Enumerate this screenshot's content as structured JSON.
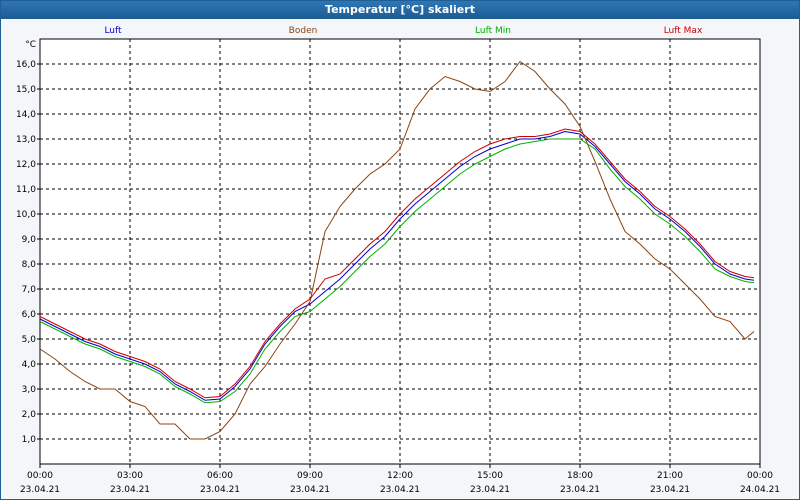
{
  "window": {
    "title": "Temperatur [°C] skaliert"
  },
  "colors": {
    "luft": "#0000cc",
    "boden": "#8b4513",
    "luft_min": "#00b000",
    "luft_max": "#cc0000",
    "grid": "#000000",
    "text": "#000000"
  },
  "chart_data": {
    "type": "line",
    "title": "Temperatur [°C] skaliert",
    "ylabel": "°C",
    "xlabel": "",
    "ylim": [
      0,
      17
    ],
    "xlim": [
      0,
      24
    ],
    "grid": true,
    "legend_position": "top",
    "y_ticks": [
      1.0,
      2.0,
      3.0,
      4.0,
      5.0,
      6.0,
      7.0,
      8.0,
      9.0,
      10.0,
      11.0,
      12.0,
      13.0,
      14.0,
      15.0,
      16.0
    ],
    "y_tick_labels": [
      "1,0",
      "2,0",
      "3,0",
      "4,0",
      "5,0",
      "6,0",
      "7,0",
      "8,0",
      "9,0",
      "10,0",
      "11,0",
      "12,0",
      "13,0",
      "14,0",
      "15,0",
      "16,0"
    ],
    "x_ticks": [
      0,
      3,
      6,
      9,
      12,
      15,
      18,
      21,
      24
    ],
    "x_tick_times": [
      "00:00",
      "03:00",
      "06:00",
      "09:00",
      "12:00",
      "15:00",
      "18:00",
      "21:00",
      "00:00"
    ],
    "x_tick_dates": [
      "23.04.21",
      "23.04.21",
      "23.04.21",
      "23.04.21",
      "23.04.21",
      "23.04.21",
      "23.04.21",
      "23.04.21",
      "24.04.21"
    ],
    "series": [
      {
        "name": "Luft",
        "color_key": "luft",
        "x": [
          0,
          0.5,
          1,
          1.5,
          2,
          2.5,
          3,
          3.5,
          4,
          4.5,
          5,
          5.5,
          6,
          6.5,
          7,
          7.5,
          8,
          8.5,
          9,
          9.5,
          10,
          10.5,
          11,
          11.5,
          12,
          12.5,
          13,
          13.5,
          14,
          14.5,
          15,
          15.5,
          16,
          16.5,
          17,
          17.5,
          18,
          18.5,
          19,
          19.5,
          20,
          20.5,
          21,
          21.5,
          22,
          22.5,
          23,
          23.5,
          23.8
        ],
        "y": [
          5.8,
          5.5,
          5.2,
          4.9,
          4.7,
          4.4,
          4.2,
          4.0,
          3.7,
          3.2,
          2.9,
          2.55,
          2.6,
          3.1,
          3.8,
          4.8,
          5.5,
          6.1,
          6.4,
          6.9,
          7.4,
          8.0,
          8.6,
          9.1,
          9.8,
          10.4,
          10.9,
          11.4,
          11.9,
          12.3,
          12.6,
          12.8,
          13.0,
          13.0,
          13.1,
          13.3,
          13.2,
          12.7,
          12.0,
          11.3,
          10.8,
          10.2,
          9.8,
          9.3,
          8.7,
          8.0,
          7.6,
          7.4,
          7.35
        ]
      },
      {
        "name": "Boden",
        "color_key": "boden",
        "x": [
          0,
          0.5,
          1,
          1.5,
          2,
          2.5,
          3,
          3.5,
          4,
          4.5,
          5,
          5.5,
          6,
          6.5,
          7,
          7.5,
          8,
          8.5,
          9,
          9.5,
          10,
          10.5,
          11,
          11.5,
          12,
          12.5,
          13,
          13.5,
          14,
          14.5,
          15,
          15.5,
          16,
          16.5,
          17,
          17.5,
          18,
          18.5,
          19,
          19.5,
          20,
          20.5,
          21,
          21.5,
          22,
          22.5,
          23,
          23.5,
          23.8
        ],
        "y": [
          4.6,
          4.2,
          3.7,
          3.3,
          3.0,
          3.0,
          2.5,
          2.3,
          1.6,
          1.6,
          1.0,
          1.0,
          1.3,
          2.0,
          3.2,
          3.9,
          4.8,
          5.6,
          6.5,
          9.3,
          10.3,
          11.0,
          11.6,
          12.0,
          12.6,
          14.2,
          15.0,
          15.5,
          15.3,
          15.0,
          14.9,
          15.3,
          16.1,
          15.7,
          15.0,
          14.4,
          13.5,
          12.1,
          10.6,
          9.3,
          8.8,
          8.2,
          7.8,
          7.2,
          6.6,
          5.9,
          5.7,
          5.0,
          5.3
        ]
      },
      {
        "name": "Luft Min",
        "color_key": "luft_min",
        "x": [
          0,
          0.5,
          1,
          1.5,
          2,
          2.5,
          3,
          3.5,
          4,
          4.5,
          5,
          5.5,
          6,
          6.5,
          7,
          7.5,
          8,
          8.5,
          9,
          9.5,
          10,
          10.5,
          11,
          11.5,
          12,
          12.5,
          13,
          13.5,
          14,
          14.5,
          15,
          15.5,
          16,
          16.5,
          17,
          17.5,
          18,
          18.5,
          19,
          19.5,
          20,
          20.5,
          21,
          21.5,
          22,
          22.5,
          23,
          23.5,
          23.8
        ],
        "y": [
          5.7,
          5.4,
          5.1,
          4.8,
          4.6,
          4.3,
          4.1,
          3.9,
          3.6,
          3.1,
          2.8,
          2.45,
          2.5,
          2.9,
          3.6,
          4.6,
          5.3,
          5.9,
          6.1,
          6.6,
          7.1,
          7.7,
          8.3,
          8.8,
          9.5,
          10.1,
          10.6,
          11.1,
          11.6,
          12.0,
          12.3,
          12.6,
          12.8,
          12.9,
          13.0,
          13.0,
          13.0,
          12.6,
          11.8,
          11.1,
          10.6,
          10.0,
          9.6,
          9.1,
          8.5,
          7.8,
          7.5,
          7.3,
          7.25
        ]
      },
      {
        "name": "Luft Max",
        "color_key": "luft_max",
        "x": [
          0,
          0.5,
          1,
          1.5,
          2,
          2.5,
          3,
          3.5,
          4,
          4.5,
          5,
          5.5,
          6,
          6.5,
          7,
          7.5,
          8,
          8.5,
          9,
          9.5,
          10,
          10.5,
          11,
          11.5,
          12,
          12.5,
          13,
          13.5,
          14,
          14.5,
          15,
          15.5,
          16,
          16.5,
          17,
          17.5,
          18,
          18.5,
          19,
          19.5,
          20,
          20.5,
          21,
          21.5,
          22,
          22.5,
          23,
          23.5,
          23.8
        ],
        "y": [
          5.9,
          5.6,
          5.3,
          5.0,
          4.8,
          4.5,
          4.3,
          4.1,
          3.8,
          3.3,
          3.0,
          2.65,
          2.7,
          3.2,
          3.9,
          4.9,
          5.6,
          6.2,
          6.6,
          7.4,
          7.6,
          8.2,
          8.8,
          9.3,
          10.0,
          10.6,
          11.1,
          11.6,
          12.1,
          12.5,
          12.8,
          13.0,
          13.1,
          13.1,
          13.2,
          13.4,
          13.3,
          12.8,
          12.1,
          11.4,
          10.9,
          10.3,
          9.9,
          9.4,
          8.8,
          8.1,
          7.7,
          7.5,
          7.45
        ]
      }
    ]
  }
}
